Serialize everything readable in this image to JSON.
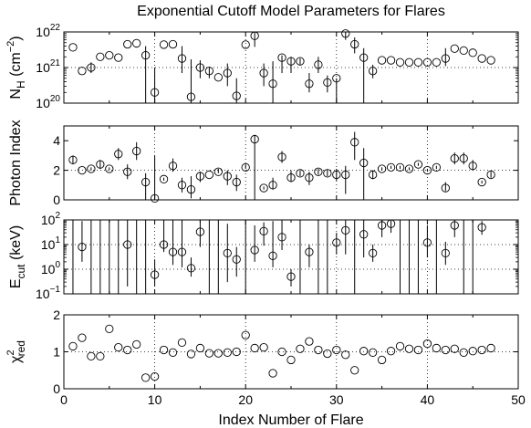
{
  "chart_data": {
    "type": "scatter",
    "title": "Exponential Cutoff Model Parameters for Flares",
    "xlabel": "Index Number of Flare",
    "xlim": [
      0,
      50
    ],
    "xticks": [
      "0",
      "10",
      "20",
      "30",
      "40",
      "50"
    ],
    "grid_x": [
      10,
      20,
      30,
      40
    ],
    "panels": [
      {
        "ylabel": "N_H (cm^-2)",
        "ylabel_parts": [
          "N",
          "H",
          " (cm",
          "−2",
          ")"
        ],
        "yscale": "log",
        "ylim": [
          1e+20,
          1e+22
        ],
        "yticks": [
          {
            "value": 1e+22,
            "base": "10",
            "exp": "22"
          },
          {
            "value": 1e+21,
            "base": "10",
            "exp": "21"
          },
          {
            "value": 1e+20,
            "base": "10",
            "exp": "20"
          }
        ],
        "hgrid": [
          1e+21
        ],
        "points": [
          [
            1,
            3.7e+21,
            3.7e+21,
            3.7e+21
          ],
          [
            2,
            8e+20,
            8e+20,
            8e+20
          ],
          [
            3,
            1e+21,
            7e+20,
            1.4e+21
          ],
          [
            4,
            2e+21,
            2e+21,
            2e+21
          ],
          [
            5,
            2.2e+21,
            2.2e+21,
            2.2e+21
          ],
          [
            6,
            1.9e+21,
            1.9e+21,
            1.9e+21
          ],
          [
            7,
            4.5e+21,
            4.5e+21,
            4.5e+21
          ],
          [
            8,
            4.8e+21,
            4.8e+21,
            4.8e+21
          ],
          [
            9,
            2.2e+21,
            1e+20,
            4e+21
          ],
          [
            10,
            2e+20,
            1e+20,
            1e+21
          ],
          [
            11,
            4.4e+21,
            4.4e+21,
            4.4e+21
          ],
          [
            12,
            4.5e+21,
            4.5e+21,
            4.5e+21
          ],
          [
            13,
            1.8e+21,
            7e+20,
            4e+21
          ],
          [
            14,
            1.5e+20,
            1e+20,
            1.7e+21
          ],
          [
            15,
            1e+21,
            5e+20,
            1.6e+21
          ],
          [
            16,
            8e+20,
            5e+20,
            1e+21
          ],
          [
            17,
            5.3e+20,
            5.3e+20,
            5.3e+20
          ],
          [
            18,
            7e+20,
            3e+20,
            1.3e+21
          ],
          [
            19,
            1.6e+20,
            1e+20,
            5e+20
          ],
          [
            20,
            4.4e+21,
            4.4e+21,
            4.4e+21
          ],
          [
            21,
            7.8e+21,
            3.8e+21,
            1.2e+22
          ],
          [
            22,
            7e+20,
            3e+20,
            1.3e+21
          ],
          [
            23,
            3.5e+20,
            1e+20,
            1.5e+21
          ],
          [
            24,
            1.9e+21,
            7e+20,
            2.2e+21
          ],
          [
            25,
            1.5e+21,
            7e+20,
            2e+21
          ],
          [
            26,
            1.5e+21,
            1.2e+21,
            1.8e+21
          ],
          [
            27,
            3.5e+20,
            2e+20,
            7e+20
          ],
          [
            28,
            1.2e+21,
            7e+20,
            2e+21
          ],
          [
            29,
            3.8e+20,
            2e+20,
            6e+20
          ],
          [
            30,
            5e+20,
            1e+20,
            5e+20
          ],
          [
            31,
            9e+21,
            6e+21,
            1.2e+22
          ],
          [
            32,
            4.5e+21,
            2.5e+21,
            7e+21
          ],
          [
            33,
            1.9e+21,
            1e+20,
            3.5e+21
          ],
          [
            34,
            8e+20,
            5e+20,
            1.2e+21
          ],
          [
            35,
            1.6e+21,
            1.6e+21,
            1.6e+21
          ],
          [
            36,
            1.6e+21,
            1.6e+21,
            1.6e+21
          ],
          [
            37,
            1.4e+21,
            1.4e+21,
            1.4e+21
          ],
          [
            38,
            1.4e+21,
            1.4e+21,
            1.4e+21
          ],
          [
            39,
            1.4e+21,
            1.4e+21,
            1.4e+21
          ],
          [
            40,
            1.4e+21,
            1.4e+21,
            1.4e+21
          ],
          [
            41,
            1.4e+21,
            1.4e+21,
            1.4e+21
          ],
          [
            42,
            1.8e+21,
            1.1e+21,
            3.5e+21
          ],
          [
            43,
            3.4e+21,
            3.4e+21,
            3.4e+21
          ],
          [
            44,
            3e+21,
            3e+21,
            3e+21
          ],
          [
            45,
            2.6e+21,
            2.6e+21,
            2.6e+21
          ],
          [
            46,
            1.8e+21,
            1.8e+21,
            1.8e+21
          ],
          [
            47,
            1.6e+21,
            1.6e+21,
            1.6e+21
          ]
        ]
      },
      {
        "ylabel": "Photon Index",
        "ylabel_parts": [
          "Photon Index"
        ],
        "yscale": "linear",
        "ylim": [
          0,
          5
        ],
        "yticks": [
          {
            "value": 4,
            "base": "4"
          },
          {
            "value": 2,
            "base": "2"
          },
          {
            "value": 0,
            "base": "0"
          }
        ],
        "hgrid": [
          2
        ],
        "points": [
          [
            1,
            2.7,
            2.4,
            3.0
          ],
          [
            2,
            2.0,
            2.0,
            2.0
          ],
          [
            3,
            2.1,
            2.0,
            2.2
          ],
          [
            4,
            2.4,
            2.1,
            2.7
          ],
          [
            5,
            2.1,
            2.0,
            2.2
          ],
          [
            6,
            3.1,
            2.7,
            3.5
          ],
          [
            7,
            1.9,
            1.4,
            2.4
          ],
          [
            8,
            3.3,
            2.7,
            3.9
          ],
          [
            9,
            1.2,
            0,
            1.8
          ],
          [
            10,
            0.1,
            0,
            3.0
          ],
          [
            11,
            1.4,
            1.3,
            1.5
          ],
          [
            12,
            2.3,
            1.9,
            2.8
          ],
          [
            13,
            1.0,
            0.5,
            1.5
          ],
          [
            14,
            0.7,
            0.1,
            1.6
          ],
          [
            15,
            1.6,
            1.2,
            1.9
          ],
          [
            16,
            1.7,
            1.7,
            1.7
          ],
          [
            17,
            1.9,
            1.8,
            2.1
          ],
          [
            18,
            1.6,
            1.0,
            2.0
          ],
          [
            19,
            1.2,
            0.6,
            1.7
          ],
          [
            20,
            2.2,
            2.1,
            2.4
          ],
          [
            21,
            4.1,
            0,
            4.4
          ],
          [
            22,
            0.8,
            0.7,
            0.9
          ],
          [
            23,
            1.0,
            0.7,
            1.5
          ],
          [
            24,
            2.9,
            2.5,
            3.3
          ],
          [
            25,
            1.5,
            1.2,
            2.0
          ],
          [
            26,
            1.8,
            1.6,
            2.0
          ],
          [
            27,
            1.5,
            1.0,
            1.9
          ],
          [
            28,
            1.9,
            1.7,
            2.1
          ],
          [
            29,
            1.8,
            1.6,
            2.0
          ],
          [
            30,
            1.7,
            1.3,
            2.1
          ],
          [
            31,
            1.7,
            0.4,
            2.3
          ],
          [
            32,
            3.9,
            2.7,
            4.6
          ],
          [
            33,
            2.5,
            0,
            3.5
          ],
          [
            34,
            1.7,
            1.4,
            2.0
          ],
          [
            35,
            2.1,
            2.0,
            2.2
          ],
          [
            36,
            2.2,
            2.1,
            2.3
          ],
          [
            37,
            2.2,
            2.1,
            2.3
          ],
          [
            38,
            2.1,
            2.0,
            2.2
          ],
          [
            39,
            2.4,
            2.3,
            2.5
          ],
          [
            40,
            2.0,
            1.9,
            2.1
          ],
          [
            41,
            2.2,
            2.1,
            2.3
          ],
          [
            42,
            0.8,
            0.6,
            1.2
          ],
          [
            43,
            2.8,
            2.4,
            3.2
          ],
          [
            44,
            2.8,
            2.4,
            3.2
          ],
          [
            45,
            2.3,
            2.0,
            2.7
          ],
          [
            46,
            1.2,
            1.1,
            1.3
          ],
          [
            47,
            1.7,
            1.5,
            1.9
          ]
        ]
      },
      {
        "ylabel": "E_cut (keV)",
        "ylabel_parts": [
          "E",
          "cut",
          " (keV)"
        ],
        "yscale": "log",
        "ylim": [
          0.1,
          100
        ],
        "yticks": [
          {
            "value": 100,
            "base": "10",
            "exp": "2"
          },
          {
            "value": 10,
            "base": "10",
            "exp": "1"
          },
          {
            "value": 1,
            "base": "10",
            "exp": "0"
          },
          {
            "value": 0.1,
            "base": "10",
            "exp": "−1"
          }
        ],
        "hgrid": [
          10,
          1
        ],
        "points": [
          [
            1,
            0,
            0,
            100
          ],
          [
            2,
            8,
            2,
            90
          ],
          [
            3,
            0,
            0,
            100
          ],
          [
            4,
            0,
            0,
            100
          ],
          [
            5,
            0,
            0,
            100
          ],
          [
            6,
            0,
            0,
            100
          ],
          [
            7,
            10,
            0.2,
            100
          ],
          [
            8,
            0,
            0,
            100
          ],
          [
            9,
            0,
            0,
            100
          ],
          [
            10,
            0.6,
            0.2,
            2.5
          ],
          [
            11,
            10,
            5,
            100
          ],
          [
            12,
            5,
            1.5,
            100
          ],
          [
            13,
            5,
            1.2,
            100
          ],
          [
            14,
            1.1,
            0.5,
            3
          ],
          [
            15,
            33,
            8,
            100
          ],
          [
            16,
            0,
            0,
            100
          ],
          [
            17,
            0,
            0,
            100
          ],
          [
            18,
            4.5,
            0.3,
            70
          ],
          [
            19,
            2.5,
            0.5,
            8
          ],
          [
            20,
            0,
            0,
            100
          ],
          [
            21,
            6,
            2,
            60
          ],
          [
            22,
            35,
            9,
            80
          ],
          [
            23,
            3.5,
            1.2,
            90
          ],
          [
            24,
            20,
            6,
            100
          ],
          [
            25,
            0.5,
            0.2,
            1
          ],
          [
            26,
            0,
            0,
            100
          ],
          [
            27,
            5,
            1.2,
            10
          ],
          [
            28,
            0,
            0,
            100
          ],
          [
            29,
            0,
            0,
            100
          ],
          [
            30,
            12,
            4,
            30
          ],
          [
            31,
            38,
            4,
            95
          ],
          [
            32,
            0,
            0,
            100
          ],
          [
            33,
            26,
            3,
            100
          ],
          [
            34,
            4.5,
            2,
            10
          ],
          [
            35,
            60,
            20,
            100
          ],
          [
            36,
            70,
            30,
            100
          ],
          [
            37,
            0,
            0,
            100
          ],
          [
            38,
            0,
            0,
            100
          ],
          [
            39,
            0,
            0,
            100
          ],
          [
            40,
            12,
            3,
            60
          ],
          [
            41,
            0,
            0,
            100
          ],
          [
            42,
            4.5,
            1.5,
            13
          ],
          [
            43,
            60,
            20,
            100
          ],
          [
            44,
            0,
            0,
            100
          ],
          [
            45,
            0,
            0,
            100
          ],
          [
            46,
            50,
            25,
            90
          ]
        ]
      },
      {
        "ylabel": "χ²_red",
        "ylabel_parts": [
          "χ",
          "2",
          "red"
        ],
        "yscale": "linear",
        "ylim": [
          0,
          2
        ],
        "yticks": [
          {
            "value": 2,
            "base": "2"
          },
          {
            "value": 1,
            "base": "1"
          },
          {
            "value": 0,
            "base": "0"
          }
        ],
        "hgrid": [
          1
        ],
        "points": [
          [
            1,
            1.15
          ],
          [
            2,
            1.38
          ],
          [
            3,
            0.88
          ],
          [
            4,
            0.88
          ],
          [
            5,
            1.62
          ],
          [
            6,
            1.12
          ],
          [
            7,
            1.05
          ],
          [
            8,
            1.2
          ],
          [
            9,
            0.3
          ],
          [
            10,
            0.33
          ],
          [
            11,
            1.05
          ],
          [
            12,
            0.98
          ],
          [
            13,
            1.25
          ],
          [
            14,
            0.94
          ],
          [
            15,
            1.1
          ],
          [
            16,
            0.96
          ],
          [
            17,
            0.96
          ],
          [
            18,
            0.98
          ],
          [
            19,
            1.0
          ],
          [
            20,
            1.45
          ],
          [
            21,
            1.1
          ],
          [
            22,
            1.12
          ],
          [
            23,
            0.42
          ],
          [
            24,
            1.0
          ],
          [
            25,
            0.78
          ],
          [
            26,
            1.08
          ],
          [
            27,
            1.28
          ],
          [
            28,
            1.05
          ],
          [
            29,
            0.95
          ],
          [
            30,
            1.05
          ],
          [
            31,
            0.92
          ],
          [
            32,
            0.5
          ],
          [
            33,
            1.02
          ],
          [
            34,
            0.98
          ],
          [
            35,
            0.78
          ],
          [
            36,
            1.02
          ],
          [
            37,
            1.15
          ],
          [
            38,
            1.08
          ],
          [
            39,
            1.05
          ],
          [
            40,
            1.22
          ],
          [
            41,
            1.1
          ],
          [
            42,
            1.05
          ],
          [
            43,
            1.08
          ],
          [
            44,
            0.98
          ],
          [
            45,
            1.02
          ],
          [
            46,
            1.05
          ],
          [
            47,
            1.1
          ]
        ]
      }
    ]
  }
}
